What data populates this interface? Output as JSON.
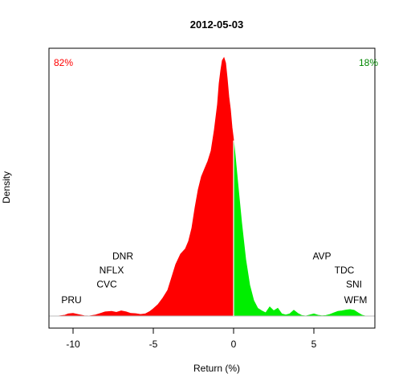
{
  "chart_data": {
    "type": "area",
    "title": "2012-05-03",
    "xlabel": "Return (%)",
    "ylabel": "Density",
    "xlim": [
      -11.5,
      8.8
    ],
    "ylim": [
      0,
      1.0
    ],
    "xticks": [
      -10,
      -5,
      0,
      5
    ],
    "xtick_labels": [
      "-10",
      "-5",
      "0",
      "5"
    ],
    "grid": false,
    "legend": "none",
    "split_x": 0,
    "colors": {
      "negative": "#ff0000",
      "positive": "#00ee00",
      "baseline": "#bebebe",
      "split_line": "#ffffff"
    },
    "percent_negative": {
      "text": "82%",
      "color": "#ff0000"
    },
    "percent_positive": {
      "text": "18%",
      "color": "#008800"
    },
    "density": {
      "x": [
        -10.9,
        -10.5,
        -10.3,
        -10.0,
        -9.7,
        -9.3,
        -9.0,
        -8.6,
        -8.3,
        -8.0,
        -7.6,
        -7.3,
        -7.0,
        -6.7,
        -6.4,
        -6.1,
        -5.8,
        -5.5,
        -5.2,
        -5.0,
        -4.7,
        -4.4,
        -4.1,
        -3.9,
        -3.6,
        -3.3,
        -3.0,
        -2.8,
        -2.6,
        -2.4,
        -2.2,
        -2.0,
        -1.8,
        -1.6,
        -1.4,
        -1.2,
        -1.0,
        -0.9,
        -0.8,
        -0.7,
        -0.6,
        -0.5,
        -0.4,
        -0.3,
        -0.2,
        -0.1,
        0.0,
        0.1,
        0.25,
        0.5,
        0.75,
        1.0,
        1.25,
        1.5,
        1.75,
        2.0,
        2.25,
        2.5,
        2.75,
        3.0,
        3.25,
        3.5,
        3.75,
        4.0,
        4.25,
        4.5,
        4.75,
        5.0,
        5.25,
        5.5,
        5.75,
        6.0,
        6.25,
        6.5,
        6.75,
        7.0,
        7.25,
        7.5,
        7.75,
        8.0,
        8.2
      ],
      "y": [
        0.0,
        0.003,
        0.008,
        0.01,
        0.006,
        0.001,
        0.0,
        0.004,
        0.01,
        0.016,
        0.018,
        0.014,
        0.02,
        0.016,
        0.01,
        0.009,
        0.006,
        0.008,
        0.018,
        0.028,
        0.045,
        0.07,
        0.1,
        0.14,
        0.2,
        0.24,
        0.26,
        0.29,
        0.34,
        0.42,
        0.49,
        0.54,
        0.57,
        0.6,
        0.64,
        0.72,
        0.82,
        0.9,
        0.95,
        0.99,
        1.0,
        0.98,
        0.92,
        0.85,
        0.8,
        0.73,
        0.68,
        0.62,
        0.52,
        0.36,
        0.22,
        0.12,
        0.06,
        0.03,
        0.02,
        0.012,
        0.035,
        0.02,
        0.03,
        0.008,
        0.004,
        0.008,
        0.022,
        0.01,
        0.002,
        0.0,
        0.004,
        0.008,
        0.003,
        0.001,
        0.002,
        0.006,
        0.012,
        0.018,
        0.02,
        0.023,
        0.025,
        0.022,
        0.012,
        0.003,
        0.0
      ]
    },
    "annotations": [
      {
        "label": "PRU",
        "x": -10.1,
        "y": 0.05,
        "side": "negative"
      },
      {
        "label": "CVC",
        "x": -7.9,
        "y": 0.11,
        "side": "negative"
      },
      {
        "label": "NFLX",
        "x": -7.6,
        "y": 0.165,
        "side": "negative"
      },
      {
        "label": "DNR",
        "x": -6.9,
        "y": 0.22,
        "side": "negative"
      },
      {
        "label": "AVP",
        "x": 5.5,
        "y": 0.22,
        "side": "positive"
      },
      {
        "label": "TDC",
        "x": 6.9,
        "y": 0.165,
        "side": "positive"
      },
      {
        "label": "SNI",
        "x": 7.5,
        "y": 0.11,
        "side": "positive"
      },
      {
        "label": "WFM",
        "x": 7.6,
        "y": 0.05,
        "side": "positive"
      }
    ]
  }
}
